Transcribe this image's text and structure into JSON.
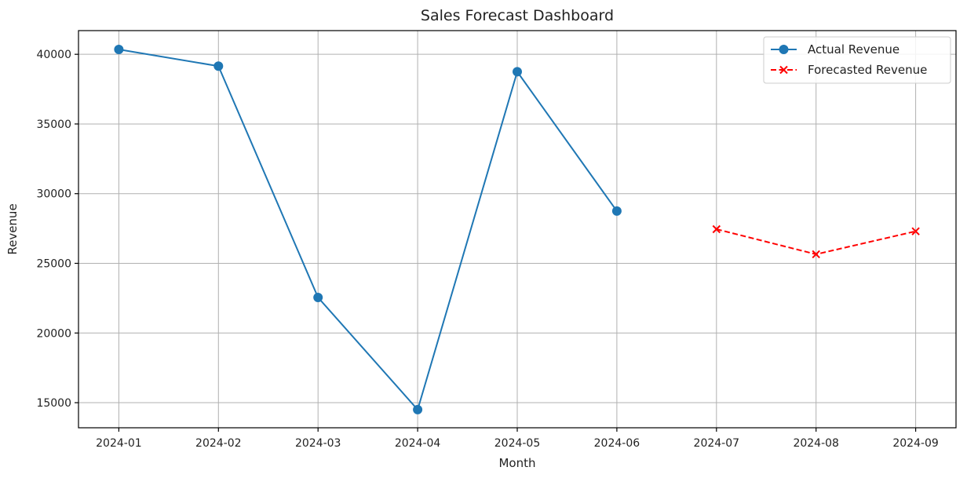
{
  "chart_data": {
    "type": "line",
    "title": "Sales Forecast Dashboard",
    "xlabel": "Month",
    "ylabel": "Revenue",
    "categories": [
      "2024-01",
      "2024-02",
      "2024-03",
      "2024-04",
      "2024-05",
      "2024-06",
      "2024-07",
      "2024-08",
      "2024-09"
    ],
    "ylim": [
      13200,
      41700
    ],
    "yticks": [
      15000,
      20000,
      25000,
      30000,
      35000,
      40000
    ],
    "grid": true,
    "legend_position": "top-right",
    "series": [
      {
        "name": "Actual Revenue",
        "color": "#1f77b4",
        "marker": "circle",
        "linestyle": "solid",
        "x": [
          "2024-01",
          "2024-02",
          "2024-03",
          "2024-04",
          "2024-05",
          "2024-06"
        ],
        "values": [
          40350,
          39150,
          22550,
          14500,
          38750,
          28750
        ]
      },
      {
        "name": "Forecasted Revenue",
        "color": "#ff0000",
        "marker": "x",
        "linestyle": "dashed",
        "x": [
          "2024-07",
          "2024-08",
          "2024-09"
        ],
        "values": [
          27450,
          25650,
          27300
        ]
      }
    ]
  }
}
